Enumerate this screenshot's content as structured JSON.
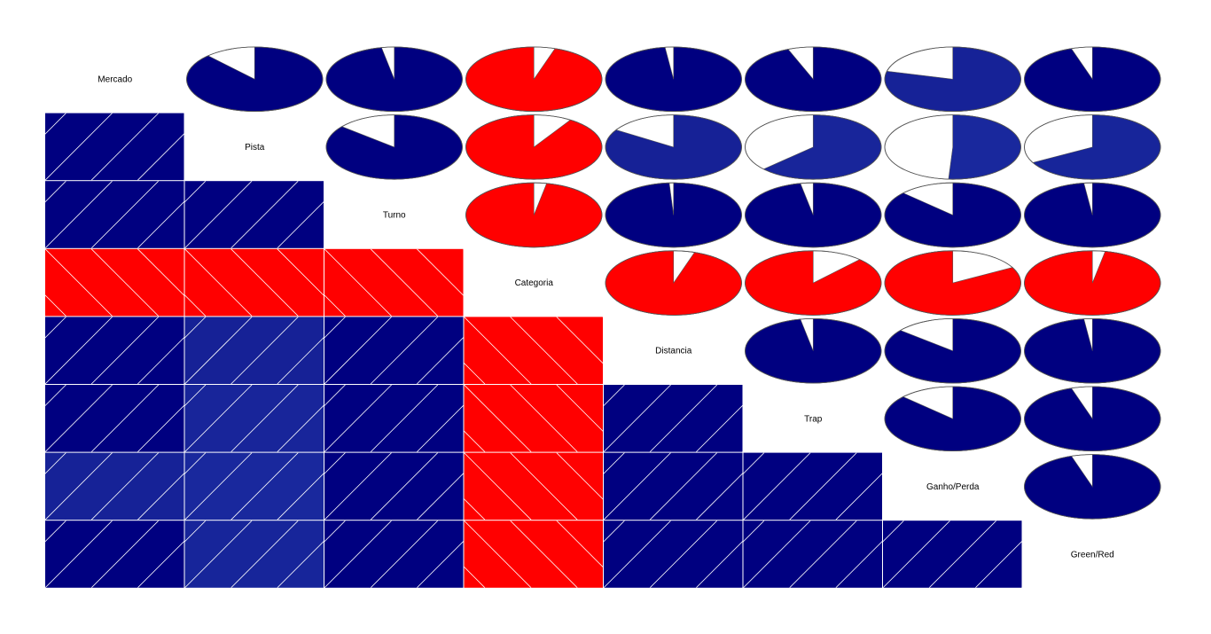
{
  "chart_data": {
    "type": "corrgram",
    "variables": [
      "Mercado",
      "Pista",
      "Turno",
      "Categoria",
      "Distancia",
      "Trap",
      "Ganho/Perda",
      "Green/Red"
    ],
    "lower_panel": "shade",
    "upper_panel": "pie",
    "positive_color": "#000080",
    "negative_color": "#ff0000",
    "range": [
      -1,
      1
    ],
    "correlations": [
      [
        1.0,
        0.88,
        0.97,
        -0.95,
        0.98,
        0.94,
        0.79,
        0.95
      ],
      [
        0.88,
        1.0,
        0.86,
        -0.91,
        0.84,
        0.63,
        0.51,
        0.67
      ],
      [
        0.97,
        0.86,
        1.0,
        -0.97,
        0.99,
        0.97,
        0.87,
        0.98
      ],
      [
        -0.95,
        -0.91,
        -0.97,
        1.0,
        -0.95,
        -0.88,
        -0.83,
        -0.97
      ],
      [
        0.98,
        0.84,
        0.99,
        -0.95,
        1.0,
        0.97,
        0.86,
        0.98
      ],
      [
        0.94,
        0.63,
        0.97,
        -0.88,
        0.97,
        1.0,
        0.87,
        0.95
      ],
      [
        0.79,
        0.51,
        0.87,
        -0.83,
        0.86,
        0.87,
        1.0,
        0.95
      ],
      [
        0.95,
        0.67,
        0.98,
        -0.97,
        0.98,
        0.95,
        0.95,
        1.0
      ]
    ]
  }
}
